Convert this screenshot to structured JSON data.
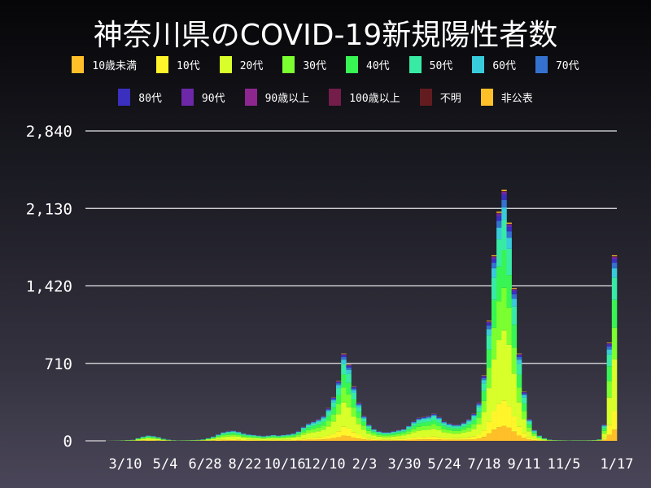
{
  "chart_data": {
    "type": "bar",
    "stacked": true,
    "title": "神奈川県のCOVID-19新規陽性者数",
    "xlabel": "",
    "ylabel": "",
    "ylim": [
      0,
      2840
    ],
    "yticks": [
      "0",
      "710",
      "1,420",
      "2,130",
      "2,840"
    ],
    "ytick_values": [
      0,
      710,
      1420,
      2130,
      2840
    ],
    "xtick_labels": [
      "3/10",
      "5/4",
      "6/28",
      "8/22",
      "10/16",
      "12/10",
      "2/3",
      "3/30",
      "5/24",
      "7/18",
      "9/11",
      "11/5",
      "1/17"
    ],
    "xtick_dates": [
      "2020-03-10",
      "2020-05-04",
      "2020-06-28",
      "2020-08-22",
      "2020-10-16",
      "2020-12-10",
      "2021-02-03",
      "2021-03-30",
      "2021-05-24",
      "2021-07-18",
      "2021-09-11",
      "2021-11-05",
      "2022-01-17"
    ],
    "grid": "horizontal",
    "legend_position": "top",
    "x_start": "2020-01-15",
    "x_end": "2022-01-17",
    "x_step": "weekly",
    "totals": [
      0,
      0,
      0,
      0,
      1,
      2,
      3,
      5,
      8,
      10,
      25,
      40,
      50,
      45,
      35,
      20,
      12,
      6,
      4,
      5,
      6,
      8,
      10,
      15,
      25,
      40,
      60,
      80,
      90,
      95,
      85,
      70,
      60,
      55,
      50,
      45,
      50,
      55,
      50,
      55,
      60,
      70,
      90,
      130,
      160,
      180,
      200,
      230,
      300,
      400,
      550,
      800,
      700,
      500,
      350,
      230,
      150,
      110,
      90,
      80,
      80,
      90,
      100,
      110,
      140,
      180,
      210,
      220,
      230,
      250,
      220,
      180,
      160,
      150,
      150,
      170,
      200,
      250,
      350,
      600,
      1100,
      1700,
      2100,
      2300,
      2000,
      1400,
      800,
      450,
      200,
      100,
      50,
      25,
      12,
      8,
      6,
      5,
      4,
      5,
      5,
      5,
      6,
      8,
      15,
      150,
      900,
      1700
    ],
    "series": [
      {
        "name": "10歳未満",
        "color": "#ffbf29",
        "share": 0.06
      },
      {
        "name": "10代",
        "color": "#fff52a",
        "share": 0.1
      },
      {
        "name": "20代",
        "color": "#d9ff2b",
        "share": 0.28
      },
      {
        "name": "30代",
        "color": "#7bff31",
        "share": 0.17
      },
      {
        "name": "40代",
        "color": "#38f554",
        "share": 0.15
      },
      {
        "name": "50代",
        "color": "#38eba5",
        "share": 0.12
      },
      {
        "name": "60代",
        "color": "#38cbdb",
        "share": 0.05
      },
      {
        "name": "70代",
        "color": "#3572d0",
        "share": 0.03
      },
      {
        "name": "80代",
        "color": "#3a2fbf",
        "share": 0.02
      },
      {
        "name": "90代",
        "color": "#6c28a8",
        "share": 0.01
      },
      {
        "name": "90歳以上",
        "color": "#8e2690",
        "share": 0.002
      },
      {
        "name": "100歳以上",
        "color": "#741c4a",
        "share": 0.001
      },
      {
        "name": "不明",
        "color": "#621c1f",
        "share": 0.002
      },
      {
        "name": "非公表",
        "color": "#ffbf29",
        "share": 0.005
      }
    ]
  }
}
